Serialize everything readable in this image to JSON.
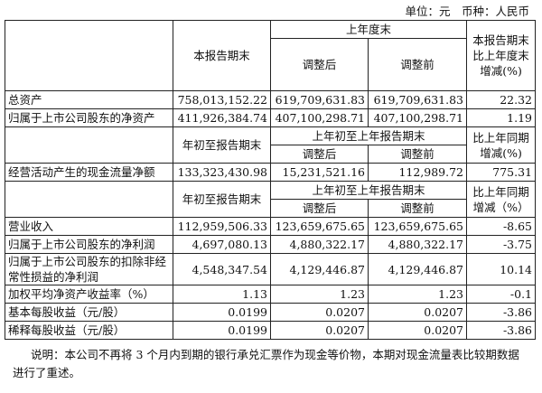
{
  "unit_label": "单位：元　币种：人民币",
  "section1": {
    "header": {
      "current": "本报告期末",
      "prior_group": "上年度末",
      "adjusted_after": "调整后",
      "adjusted_before": "调整前",
      "change": "本报告期末比上年度末增减(%)"
    },
    "rows": [
      {
        "label": "总资产",
        "current": "758,013,152.22",
        "after": "619,709,631.83",
        "before": "619,709,631.83",
        "change": "22.32"
      },
      {
        "label": "归属于上市公司股东的净资产",
        "current": "411,926,384.74",
        "after": "407,100,298.71",
        "before": "407,100,298.71",
        "change": "1.19"
      }
    ]
  },
  "section2": {
    "header": {
      "current": "年初至报告期末",
      "prior_group": "上年初至上年报告期末",
      "adjusted_after": "调整后",
      "adjusted_before": "调整前",
      "change": "比上年同期增减(%)"
    },
    "rows": [
      {
        "label": "经营活动产生的现金流量净额",
        "current": "133,323,430.98",
        "after": "15,231,521.16",
        "before": "112,989.72",
        "change": "775.31"
      }
    ]
  },
  "section3": {
    "header": {
      "current": "年初至报告期末",
      "prior_group": "上年初至上年报告期末",
      "adjusted_after": "调整后",
      "adjusted_before": "调整前",
      "change": "比上年同期增减（%）"
    },
    "rows": [
      {
        "label": "营业收入",
        "current": "112,959,506.33",
        "after": "123,659,675.65",
        "before": "123,659,675.65",
        "change": "-8.65"
      },
      {
        "label": "归属于上市公司股东的净利润",
        "current": "4,697,080.13",
        "after": "4,880,322.17",
        "before": "4,880,322.17",
        "change": "-3.75"
      },
      {
        "label": "归属于上市公司股东的扣除非经常性损益的净利润",
        "current": "4,548,347.54",
        "after": "4,129,446.87",
        "before": "4,129,446.87",
        "change": "10.14"
      },
      {
        "label": "加权平均净资产收益率（%）",
        "current": "1.13",
        "after": "1.23",
        "before": "1.23",
        "change": "-0.1"
      },
      {
        "label": "基本每股收益（元/股）",
        "current": "0.0199",
        "after": "0.0207",
        "before": "0.0207",
        "change": "-3.86"
      },
      {
        "label": "稀释每股收益（元/股）",
        "current": "0.0199",
        "after": "0.0207",
        "before": "0.0207",
        "change": "-3.86"
      }
    ]
  },
  "note": "说明：本公司不再将 3 个月内到期的银行承兑汇票作为现金等价物，本期对现金流量表比较期数据进行了重述。"
}
